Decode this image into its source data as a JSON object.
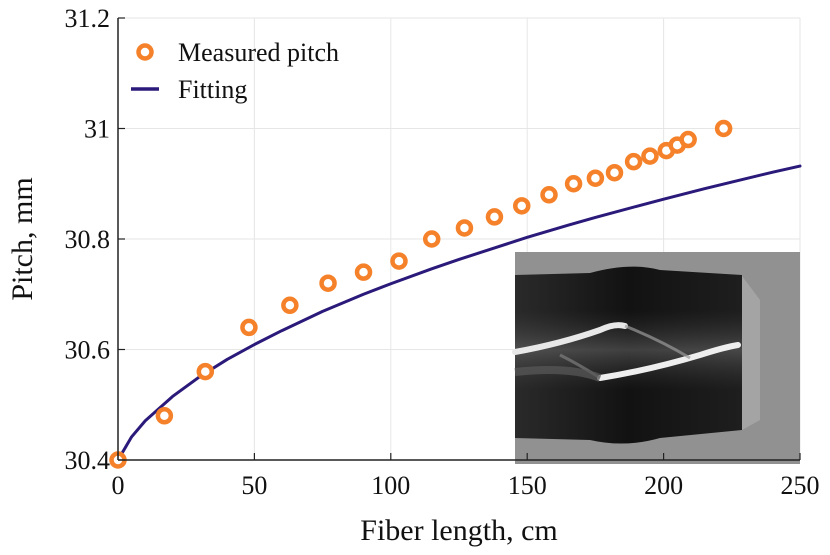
{
  "chart_data": {
    "type": "scatter",
    "title": "",
    "xlabel": "Fiber length, cm",
    "ylabel": "Pitch, mm",
    "xlim": [
      0,
      250
    ],
    "ylim": [
      30.4,
      31.2
    ],
    "xticks": [
      0,
      50,
      100,
      150,
      200,
      250
    ],
    "yticks": [
      30.4,
      30.6,
      30.8,
      31,
      31.2
    ],
    "xtick_labels": [
      "0",
      "50",
      "100",
      "150",
      "200",
      "250"
    ],
    "ytick_labels": [
      "30.4",
      "30.6",
      "30.8",
      "31",
      "31.2"
    ],
    "grid": true,
    "legend_position": "top-left",
    "series": [
      {
        "name": "Measured pitch",
        "kind": "markers",
        "marker": "open-circle",
        "color": "#f5822a",
        "x": [
          0,
          17,
          32,
          48,
          63,
          77,
          90,
          103,
          115,
          127,
          138,
          148,
          158,
          167,
          175,
          182,
          189,
          195,
          201,
          205,
          209,
          222
        ],
        "y": [
          30.4,
          30.48,
          30.56,
          30.64,
          30.68,
          30.72,
          30.74,
          30.76,
          30.8,
          30.82,
          30.84,
          30.86,
          30.88,
          30.9,
          30.91,
          30.92,
          30.94,
          30.95,
          30.96,
          30.97,
          30.98,
          31.0
        ]
      },
      {
        "name": "Fitting",
        "kind": "line",
        "color": "#2b1a7a",
        "x": [
          0,
          5,
          10,
          20,
          30,
          40,
          50,
          60,
          75,
          90,
          100,
          115,
          125,
          140,
          150,
          165,
          175,
          190,
          200,
          215,
          225,
          240,
          250
        ],
        "y": [
          30.4,
          30.442,
          30.471,
          30.515,
          30.551,
          30.582,
          30.609,
          30.634,
          30.669,
          30.7,
          30.719,
          30.746,
          30.763,
          30.787,
          30.803,
          30.825,
          30.839,
          30.859,
          30.872,
          30.891,
          30.903,
          30.921,
          30.932
        ]
      }
    ],
    "inset": {
      "description": "grayscale fiber image",
      "position": "bottom-right"
    }
  },
  "colors": {
    "marker": "#f5822a",
    "fit_line": "#2b1a7a",
    "grid": "#e6e6e6",
    "axis": "#222222"
  }
}
